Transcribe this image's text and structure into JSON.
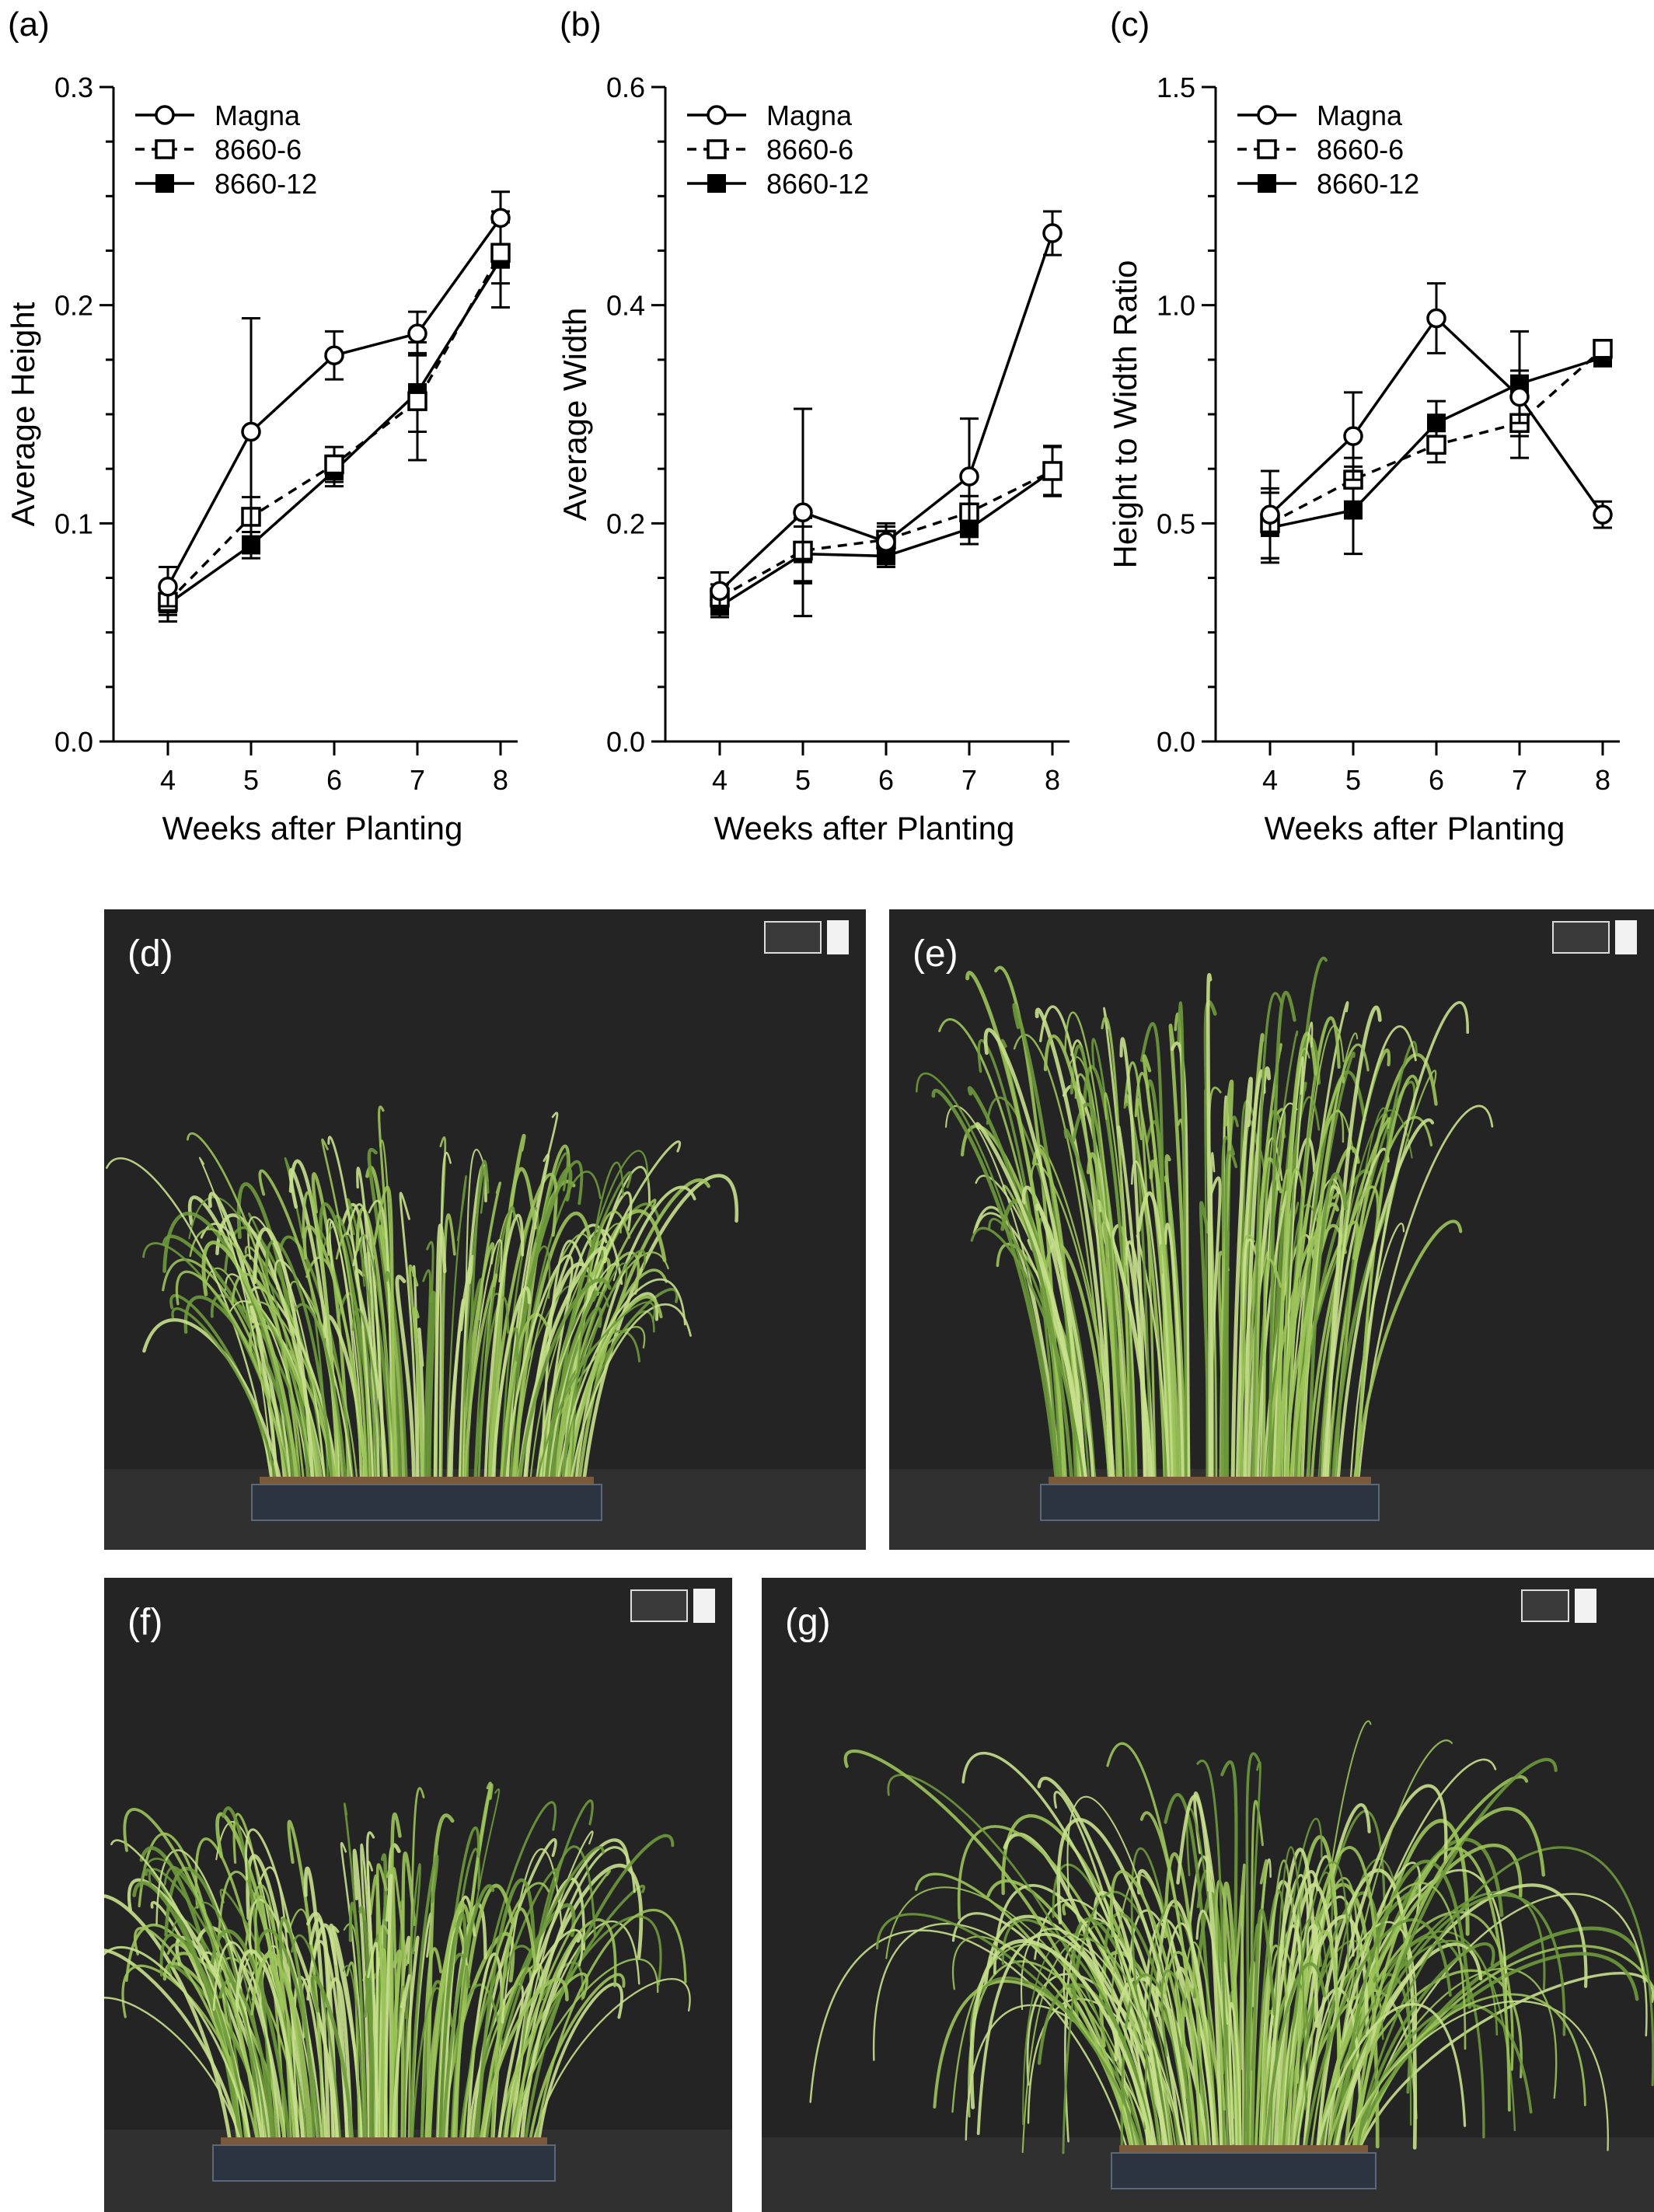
{
  "chart_data": [
    {
      "type": "line",
      "panel_label": "(a)",
      "xlabel": "Weeks after Planting",
      "ylabel": "Average Height",
      "x": [
        4,
        5,
        6,
        7,
        8
      ],
      "xticks": [
        "4",
        "5",
        "6",
        "7",
        "8"
      ],
      "ylim": [
        0,
        0.3
      ],
      "yticks": [
        "0.0",
        "0.1",
        "0.2",
        "0.3"
      ],
      "yminor": [
        0.025,
        0.05,
        0.075,
        0.125,
        0.15,
        0.175,
        0.225,
        0.25,
        0.275
      ],
      "legend": "top-left",
      "series": [
        {
          "name": "Magna",
          "marker": "open-circle",
          "dash": "solid",
          "values": [
            0.071,
            0.142,
            0.177,
            0.187,
            0.24
          ],
          "errors": [
            0.009,
            0.052,
            0.011,
            0.01,
            0.012
          ]
        },
        {
          "name": "8660-6",
          "marker": "open-square",
          "dash": "dashed",
          "values": [
            0.064,
            0.103,
            0.127,
            0.156,
            0.224
          ],
          "errors": [
            0.006,
            0.009,
            0.008,
            0.027,
            0.014
          ]
        },
        {
          "name": "8660-12",
          "marker": "filled-square",
          "dash": "solid",
          "values": [
            0.063,
            0.09,
            0.124,
            0.16,
            0.221
          ],
          "errors": [
            0.008,
            0.006,
            0.007,
            0.018,
            0.022
          ]
        }
      ]
    },
    {
      "type": "line",
      "panel_label": "(b)",
      "xlabel": "Weeks after Planting",
      "ylabel": "Average Width",
      "x": [
        4,
        5,
        6,
        7,
        8
      ],
      "xticks": [
        "4",
        "5",
        "6",
        "7",
        "8"
      ],
      "ylim": [
        0,
        0.6
      ],
      "yticks": [
        "0.0",
        "0.2",
        "0.4",
        "0.6"
      ],
      "yminor": [
        0.05,
        0.1,
        0.15,
        0.25,
        0.3,
        0.35,
        0.45,
        0.5,
        0.55
      ],
      "legend": "top-left",
      "series": [
        {
          "name": "Magna",
          "marker": "open-circle",
          "dash": "solid",
          "values": [
            0.138,
            0.21,
            0.183,
            0.243,
            0.466
          ],
          "errors": [
            0.017,
            0.095,
            0.014,
            0.053,
            0.02
          ]
        },
        {
          "name": "8660-6",
          "marker": "open-square",
          "dash": "dashed",
          "values": [
            0.132,
            0.175,
            0.185,
            0.21,
            0.248
          ],
          "errors": [
            0.012,
            0.03,
            0.015,
            0.015,
            0.022
          ]
        },
        {
          "name": "8660-12",
          "marker": "filled-square",
          "dash": "solid",
          "values": [
            0.124,
            0.172,
            0.17,
            0.195,
            0.248
          ],
          "errors": [
            0.01,
            0.025,
            0.01,
            0.014,
            0.023
          ]
        }
      ]
    },
    {
      "type": "line",
      "panel_label": "(c)",
      "xlabel": "Weeks after Planting",
      "ylabel": "Height to Width Ratio",
      "x": [
        4,
        5,
        6,
        7,
        8
      ],
      "xticks": [
        "4",
        "5",
        "6",
        "7",
        "8"
      ],
      "ylim": [
        0,
        1.5
      ],
      "yticks": [
        "0.0",
        "0.5",
        "1.0",
        "1.5"
      ],
      "yminor": [
        0.125,
        0.25,
        0.375,
        0.625,
        0.75,
        0.875,
        1.125,
        1.25,
        1.375
      ],
      "legend": "top-left",
      "series": [
        {
          "name": "Magna",
          "marker": "open-circle",
          "dash": "solid",
          "values": [
            0.52,
            0.7,
            0.97,
            0.79,
            0.52
          ],
          "errors": [
            0.1,
            0.1,
            0.08,
            0.06,
            0.03
          ]
        },
        {
          "name": "8660-6",
          "marker": "open-square",
          "dash": "dashed",
          "values": [
            0.5,
            0.6,
            0.68,
            0.73,
            0.9
          ],
          "errors": [
            0.08,
            0.05,
            0.04,
            0.08,
            0.02
          ]
        },
        {
          "name": "8660-12",
          "marker": "filled-square",
          "dash": "solid",
          "values": [
            0.49,
            0.53,
            0.73,
            0.82,
            0.88
          ],
          "errors": [
            0.08,
            0.1,
            0.05,
            0.12,
            0.02
          ]
        }
      ]
    }
  ],
  "photos": [
    {
      "label": "(d)"
    },
    {
      "label": "(e)"
    },
    {
      "label": "(f)"
    },
    {
      "label": "(g)"
    }
  ],
  "colors": {
    "backdrop": "#242424",
    "floor": "#303030",
    "grass_light": "#c8e08c",
    "grass_mid": "#9cc45a",
    "grass_dark": "#6e9a3c",
    "tray": "#2b3440"
  }
}
